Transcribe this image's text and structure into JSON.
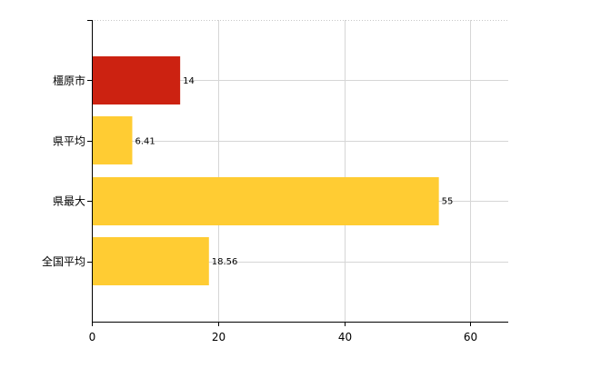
{
  "chart_data": {
    "type": "bar",
    "orientation": "horizontal",
    "categories": [
      "橿原市",
      "県平均",
      "県最大",
      "全国平均"
    ],
    "values": [
      14,
      6.41,
      55,
      18.56
    ],
    "data_labels": [
      "14",
      "6.41",
      "55",
      "18.56"
    ],
    "colors": [
      "#cc2211",
      "#ffcc33",
      "#ffcc33",
      "#ffcc33"
    ],
    "xlim": [
      0,
      66
    ],
    "x_ticks": [
      0,
      20,
      40,
      60
    ],
    "x_tick_labels": [
      "0",
      "20",
      "40",
      "60"
    ],
    "title": "",
    "xlabel": "",
    "ylabel": "",
    "grid": true,
    "legend": "none"
  }
}
